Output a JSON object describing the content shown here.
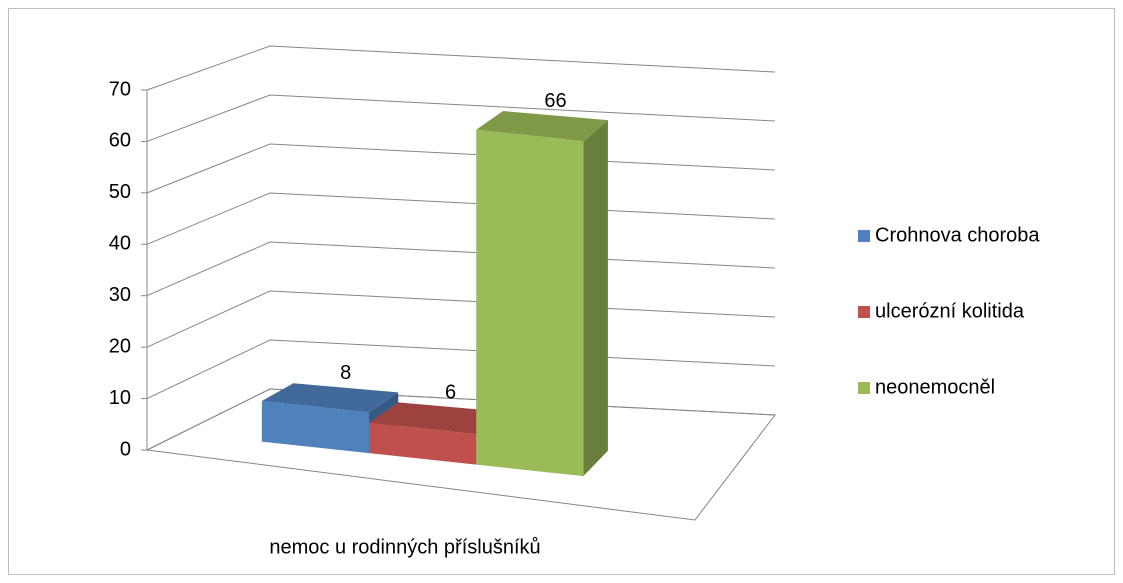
{
  "chart_data": {
    "type": "bar3d",
    "categories": [
      "nemoc u rodinných příslušníků"
    ],
    "series": [
      {
        "name": "Crohnova choroba",
        "color": "#4f81bd",
        "values": [
          8
        ]
      },
      {
        "name": "ulcerózní kolitida",
        "color": "#c0504d",
        "values": [
          6
        ]
      },
      {
        "name": "neonemocněl",
        "color": "#9bbb59",
        "values": [
          66
        ]
      }
    ],
    "ylim": [
      0,
      70
    ],
    "yticks": [
      0,
      10,
      20,
      30,
      40,
      50,
      60,
      70
    ],
    "grid": true,
    "legend": "right"
  }
}
